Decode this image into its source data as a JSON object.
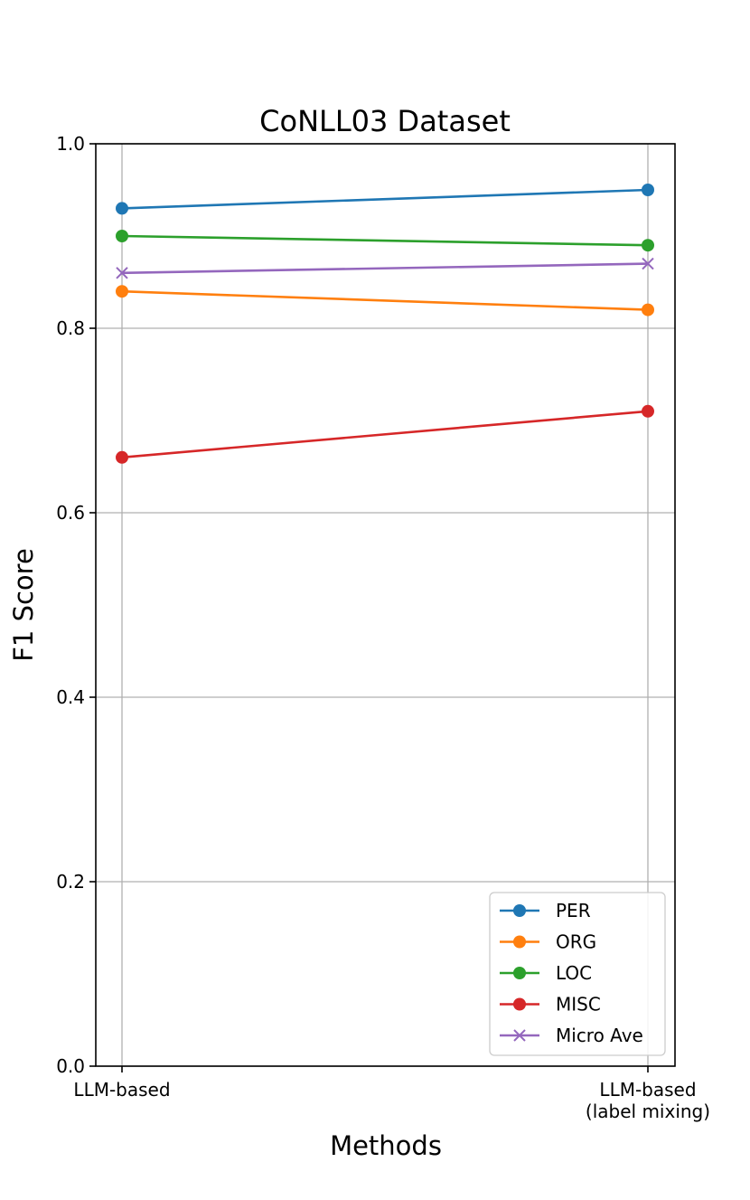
{
  "chart_data": {
    "type": "line",
    "title": "CoNLL03 Dataset",
    "xlabel": "Methods",
    "ylabel": "F1 Score",
    "ylim": [
      0,
      1.0
    ],
    "yticks": [
      "0.0",
      "0.2",
      "0.4",
      "0.6",
      "0.8",
      "1.0"
    ],
    "categories": [
      [
        "LLM-based"
      ],
      [
        "LLM-based",
        "(label mixing)"
      ]
    ],
    "grid": true,
    "legend_position": "lower-right",
    "series": [
      {
        "name": "PER",
        "values": [
          0.93,
          0.95
        ],
        "color": "#1f77b4",
        "marker": "circle"
      },
      {
        "name": "ORG",
        "values": [
          0.84,
          0.82
        ],
        "color": "#ff7f0e",
        "marker": "circle"
      },
      {
        "name": "LOC",
        "values": [
          0.9,
          0.89
        ],
        "color": "#2ca02c",
        "marker": "circle"
      },
      {
        "name": "MISC",
        "values": [
          0.66,
          0.71
        ],
        "color": "#d62728",
        "marker": "circle"
      },
      {
        "name": "Micro Ave",
        "values": [
          0.86,
          0.87
        ],
        "color": "#9467bd",
        "marker": "x"
      }
    ]
  }
}
